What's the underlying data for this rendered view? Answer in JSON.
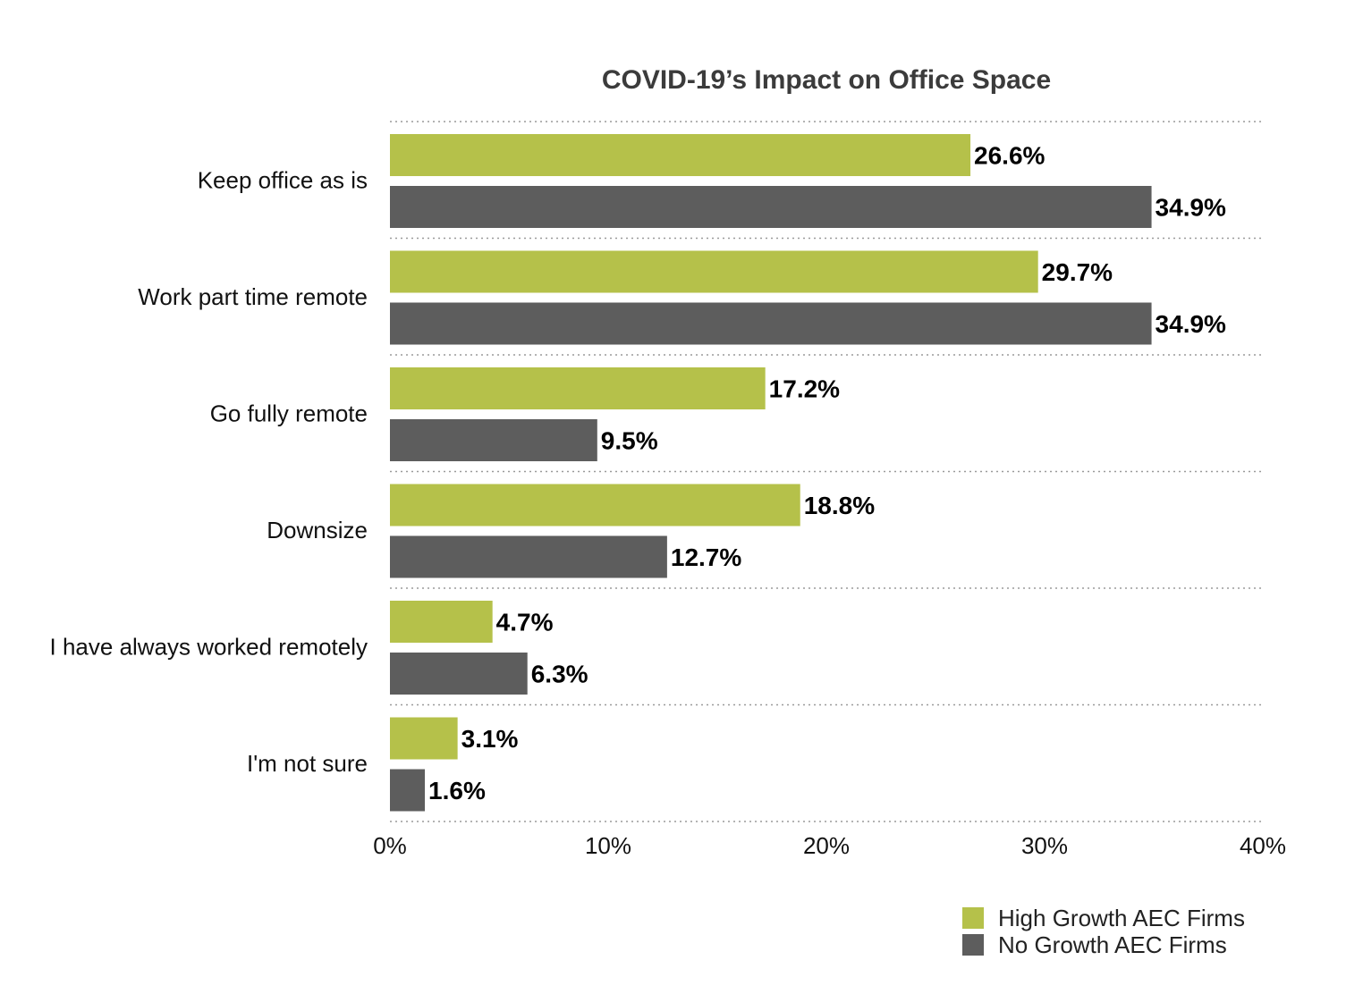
{
  "chart_data": {
    "type": "bar",
    "orientation": "horizontal",
    "title": "COVID-19’s Impact on Office Space",
    "categories": [
      "Keep office as is",
      "Work part time remote",
      "Go fully remote",
      "Downsize",
      "I have always worked remotely",
      "I'm not sure"
    ],
    "series": [
      {
        "name": "High Growth AEC Firms",
        "color": "#b5c14a",
        "values": [
          26.6,
          29.7,
          17.2,
          18.8,
          4.7,
          3.1
        ],
        "labels": [
          "26.6%",
          "29.7%",
          "17.2%",
          "18.8%",
          "4.7%",
          "3.1%"
        ]
      },
      {
        "name": "No Growth AEC Firms",
        "color": "#5d5d5d",
        "values": [
          34.9,
          34.9,
          9.5,
          12.7,
          6.3,
          1.6
        ],
        "labels": [
          "34.9%",
          "34.9%",
          "9.5%",
          "12.7%",
          "6.3%",
          "1.6%"
        ]
      }
    ],
    "xlim": [
      0,
      40
    ],
    "xticks": [
      0,
      10,
      20,
      30,
      40
    ],
    "xtick_labels": [
      "0%",
      "10%",
      "20%",
      "30%",
      "40%"
    ],
    "xlabel": "",
    "ylabel": "",
    "grid": "horizontal dotted separators",
    "legend_position": "bottom-right"
  }
}
